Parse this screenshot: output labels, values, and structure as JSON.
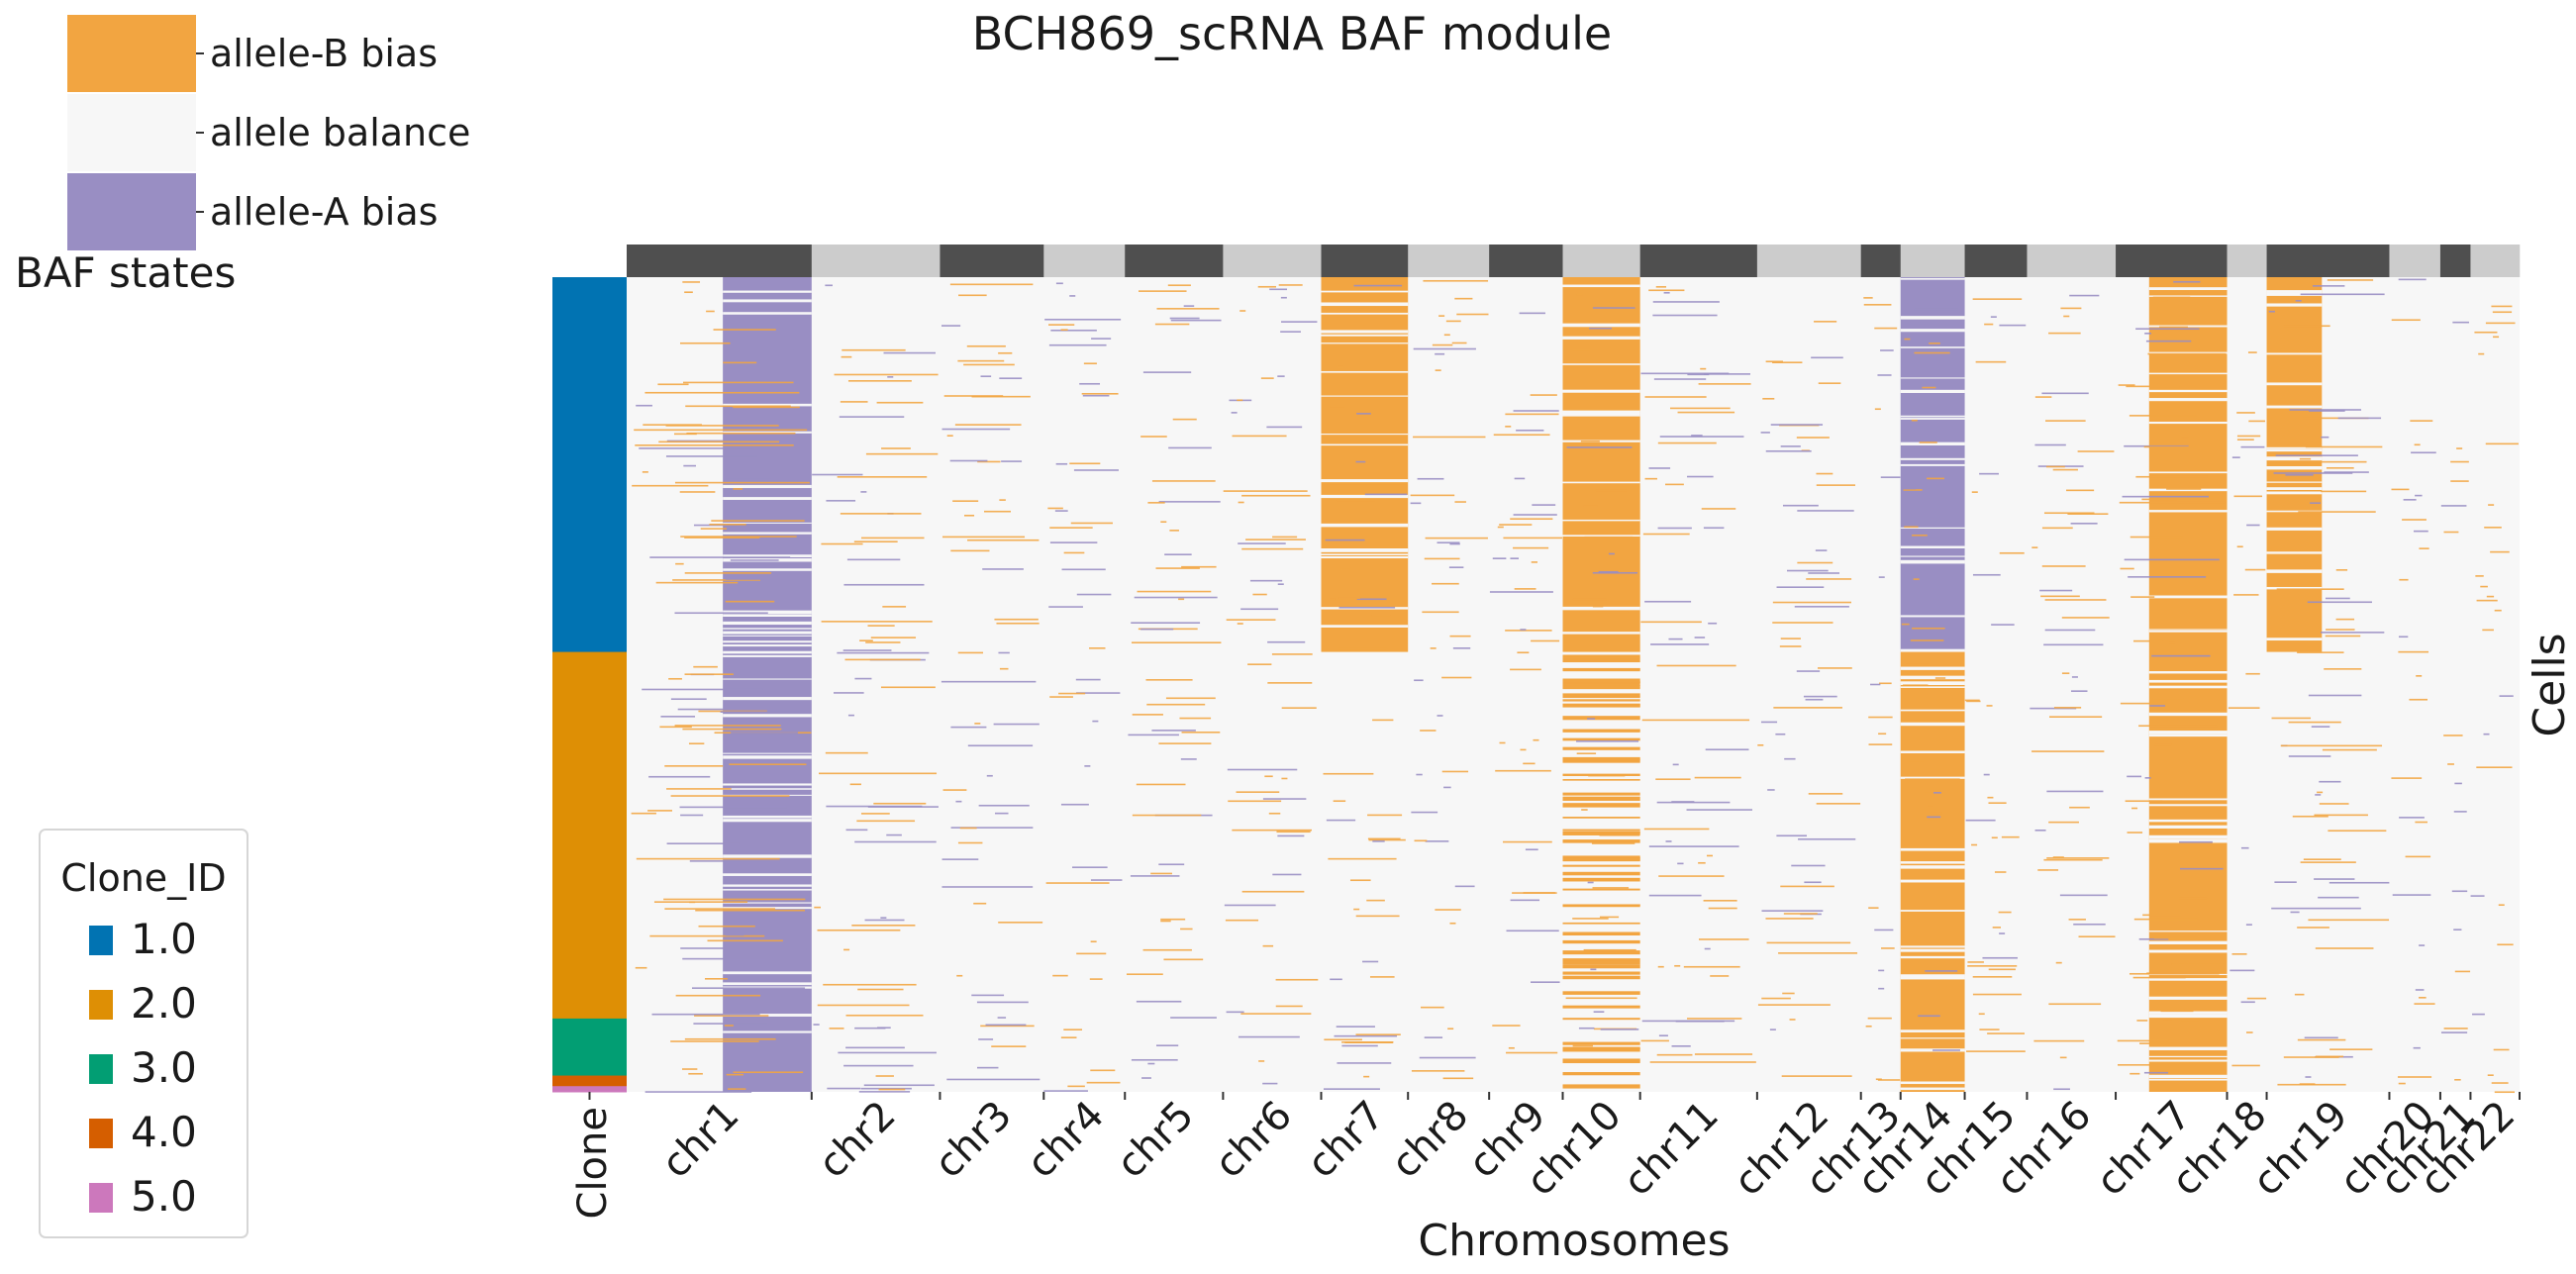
{
  "chart_data": {
    "type": "heatmap",
    "title": "BCH869_scRNA BAF module",
    "xlabel": "Chromosomes",
    "ylabel": "Cells",
    "clone_column_label": "Clone",
    "baf_legend": {
      "title": "BAF states",
      "entries": [
        {
          "label": "allele-B bias",
          "color": "#F2A541"
        },
        {
          "label": "allele balance",
          "color": "#F7F7F7"
        },
        {
          "label": "allele-A bias",
          "color": "#998EC3"
        }
      ]
    },
    "clone_legend": {
      "title": "Clone_ID",
      "entries": [
        {
          "label": "1.0",
          "color": "#0173B2"
        },
        {
          "label": "2.0",
          "color": "#DE8F05"
        },
        {
          "label": "3.0",
          "color": "#029E73"
        },
        {
          "label": "4.0",
          "color": "#D55E00"
        },
        {
          "label": "5.0",
          "color": "#CC78BC"
        }
      ]
    },
    "clone_fractions": [
      {
        "clone": "1.0",
        "fraction": 0.46
      },
      {
        "clone": "2.0",
        "fraction": 0.45
      },
      {
        "clone": "3.0",
        "fraction": 0.07
      },
      {
        "clone": "4.0",
        "fraction": 0.013
      },
      {
        "clone": "5.0",
        "fraction": 0.007
      }
    ],
    "chromosomes": [
      {
        "name": "chr1",
        "width": 0.098
      },
      {
        "name": "chr2",
        "width": 0.068
      },
      {
        "name": "chr3",
        "width": 0.055
      },
      {
        "name": "chr4",
        "width": 0.043
      },
      {
        "name": "chr5",
        "width": 0.052
      },
      {
        "name": "chr6",
        "width": 0.052
      },
      {
        "name": "chr7",
        "width": 0.046
      },
      {
        "name": "chr8",
        "width": 0.043
      },
      {
        "name": "chr9",
        "width": 0.039
      },
      {
        "name": "chr10",
        "width": 0.041
      },
      {
        "name": "chr11",
        "width": 0.062
      },
      {
        "name": "chr12",
        "width": 0.055
      },
      {
        "name": "chr13",
        "width": 0.021
      },
      {
        "name": "chr14",
        "width": 0.034
      },
      {
        "name": "chr15",
        "width": 0.033
      },
      {
        "name": "chr16",
        "width": 0.047
      },
      {
        "name": "chr17",
        "width": 0.059
      },
      {
        "name": "chr18",
        "width": 0.021
      },
      {
        "name": "chr19",
        "width": 0.065
      },
      {
        "name": "chr20",
        "width": 0.027
      },
      {
        "name": "chr21",
        "width": 0.016
      },
      {
        "name": "chr22",
        "width": 0.026
      }
    ],
    "region_states": [
      {
        "chrom": "chr1",
        "start": 0.52,
        "end": 1.0,
        "clones": "all",
        "state": "allele-A bias"
      },
      {
        "chrom": "chr7",
        "start": 0.0,
        "end": 1.0,
        "clones": [
          "1.0"
        ],
        "state": "allele-B bias"
      },
      {
        "chrom": "chr10",
        "start": 0.0,
        "end": 1.0,
        "clones": [
          "1.0"
        ],
        "state": "allele-B bias"
      },
      {
        "chrom": "chr10",
        "start": 0.0,
        "end": 1.0,
        "clones": [
          "2.0",
          "3.0",
          "4.0",
          "5.0"
        ],
        "state": "allele-B bias (partial)"
      },
      {
        "chrom": "chr14",
        "start": 0.0,
        "end": 1.0,
        "clones": [
          "1.0"
        ],
        "state": "allele-A bias"
      },
      {
        "chrom": "chr14",
        "start": 0.0,
        "end": 1.0,
        "clones": [
          "2.0",
          "3.0",
          "4.0",
          "5.0"
        ],
        "state": "allele-B bias"
      },
      {
        "chrom": "chr17",
        "start": 0.3,
        "end": 1.0,
        "clones": "all",
        "state": "allele-B bias"
      },
      {
        "chrom": "chr19",
        "start": 0.0,
        "end": 0.45,
        "clones": [
          "1.0"
        ],
        "state": "allele-B bias"
      }
    ]
  }
}
